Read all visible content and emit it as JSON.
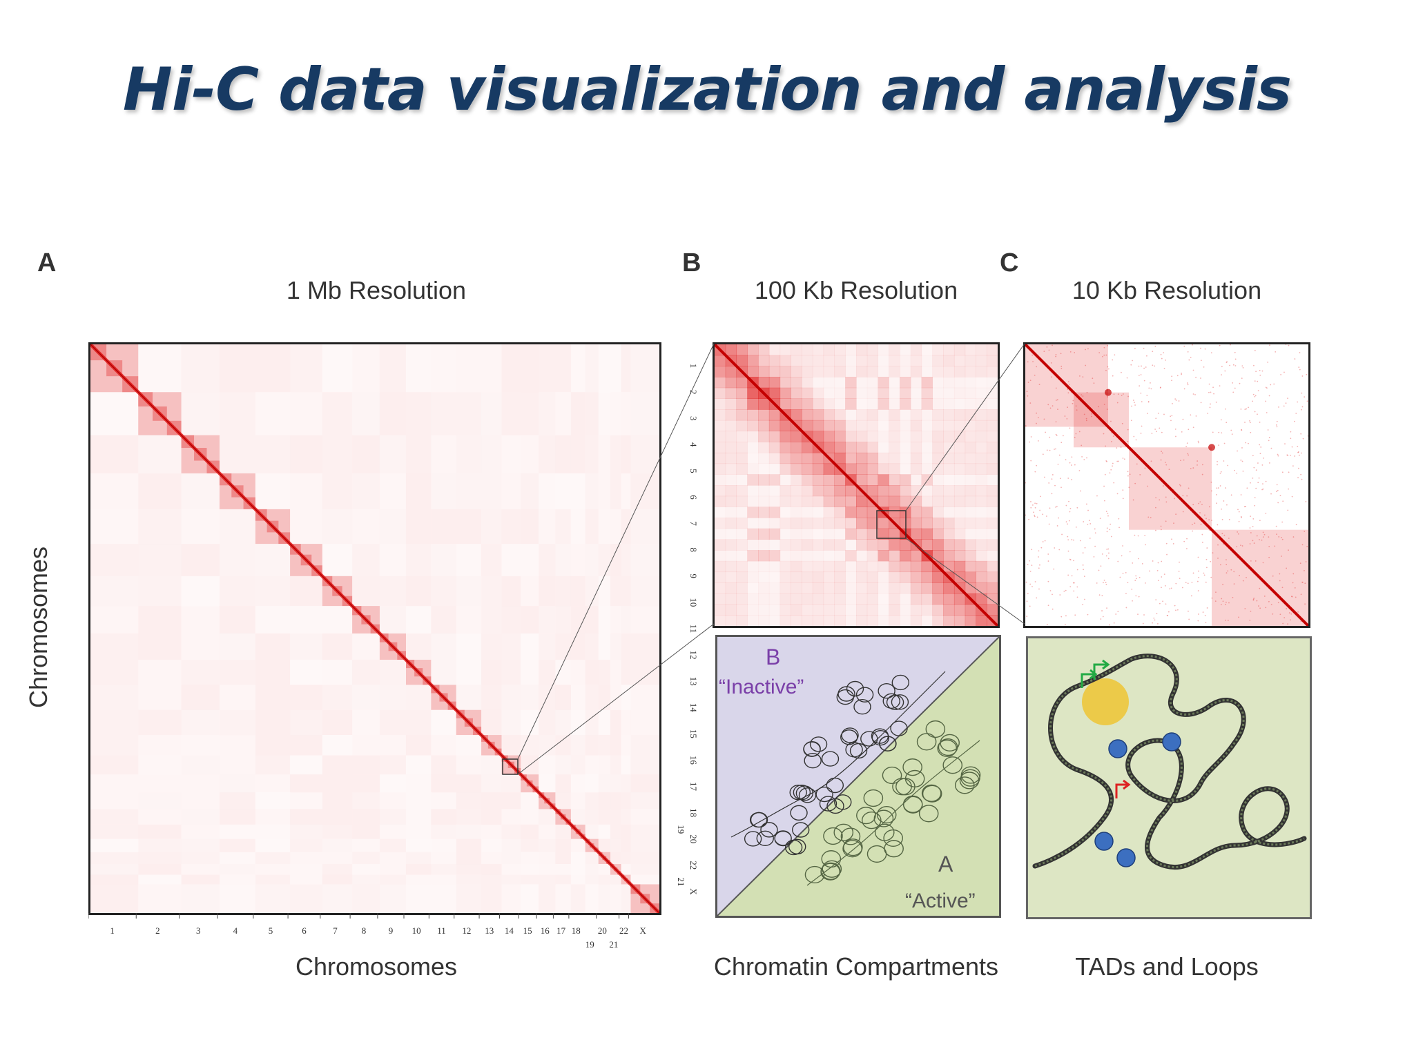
{
  "title": "Hi-C data visualization and analysis",
  "panels": {
    "a": {
      "letter": "A",
      "resolution": "1 Mb Resolution",
      "x_label": "Chromosomes",
      "y_label": "Chromosomes",
      "x_ticks_top": [
        "1",
        "2",
        "3",
        "4",
        "5",
        "6",
        "7",
        "8",
        "9",
        "10",
        "11",
        "12",
        "13",
        "14",
        "15",
        "16",
        "17",
        "18",
        "20",
        "22",
        "X"
      ],
      "x_ticks_bottom": [
        "19",
        "21"
      ]
    },
    "b": {
      "letter": "B",
      "resolution": "100 Kb Resolution",
      "y_ticks": [
        "1",
        "2",
        "3",
        "4",
        "5",
        "6",
        "7",
        "8",
        "9",
        "10",
        "11",
        "12",
        "13",
        "14",
        "15",
        "16",
        "17",
        "18",
        "20",
        "22",
        "X"
      ],
      "y_ticks_extra": [
        "19",
        "21"
      ],
      "caption": "Chromatin Compartments",
      "inactive_letter": "B",
      "inactive_label": "“Inactive”",
      "active_letter": "A",
      "active_label": "“Active”"
    },
    "c": {
      "letter": "C",
      "resolution": "10 Kb Resolution",
      "caption": "TADs and Loops"
    }
  },
  "colors": {
    "title": "#173a63",
    "heat_red": "#e02020",
    "inactive_fill": "#d9d6ea",
    "active_fill": "#d3e0b4",
    "inactive_text": "#7a3fa8",
    "loop_fill": "#dde6c4",
    "anchor_blue": "#3c6fc0",
    "tad_yellow": "#f0c020"
  }
}
